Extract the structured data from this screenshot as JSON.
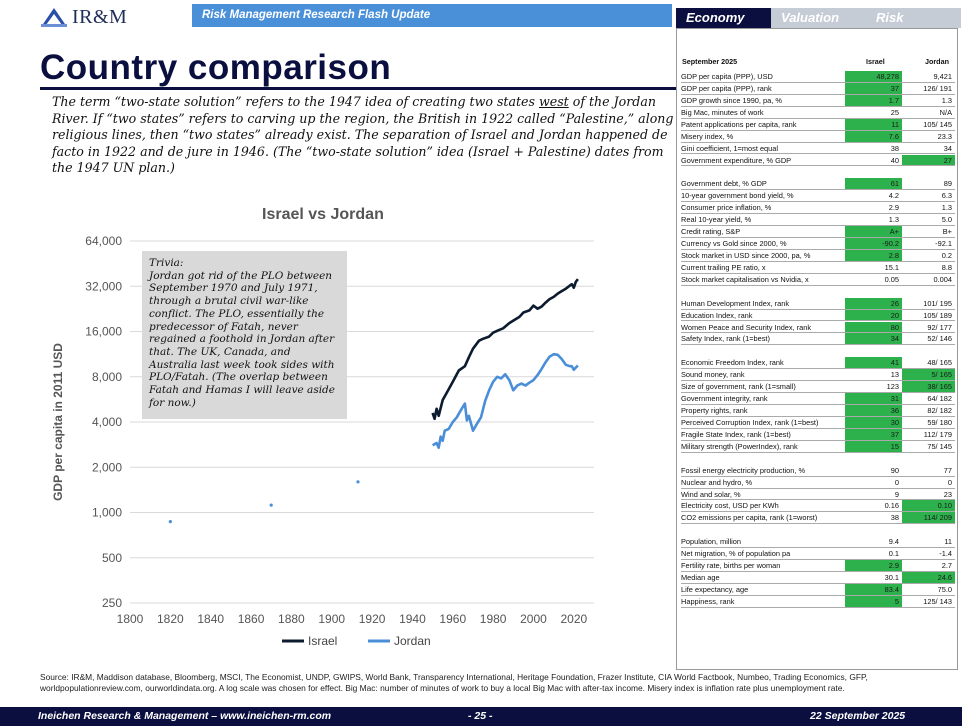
{
  "header": {
    "logo_text": "IR&M",
    "bar_title": "Risk Management Research Flash Update",
    "tabs": [
      {
        "label": "Economy",
        "active": true
      },
      {
        "label": "Valuation",
        "active": false
      },
      {
        "label": "Risk",
        "active": false
      }
    ]
  },
  "page_title": "Country comparison",
  "intro": {
    "part1": "The term “two-state solution” refers to the 1947 idea of creating two states ",
    "underlined": "west",
    "part2": " of the Jordan River. If “two states” refers to carving up the region, the British in 1922 called “Palestine,” along religious lines, then “two states” already exist. The separation of Israel and Jordan happened de facto in 1922 and de jure in 1946. (The “two-state solution” idea (Israel + Palestine) dates from the 1947 UN plan.)"
  },
  "trivia": {
    "heading": "Trivia:",
    "body": "Jordan got rid of the PLO between September 1970 and July 1971, through a brutal civil war-like conflict. The PLO, essentially the predecessor of Fatah, never regained a foothold in Jordan after that. The UK, Canada, and Australia last week took sides with PLO/Fatah. (The overlap between Fatah and Hamas I will leave aside for now.)"
  },
  "chart_data": {
    "type": "line",
    "title": "Israel vs Jordan",
    "xlabel": "",
    "ylabel": "GDP per capita in 2011 USD",
    "y_scale": "log",
    "ylim": [
      250,
      64000
    ],
    "xlim": [
      1800,
      2030
    ],
    "y_ticks": [
      "64,000",
      "32,000",
      "16,000",
      "8,000",
      "4,000",
      "2,000",
      "1,000",
      "500",
      "250"
    ],
    "y_tick_values": [
      64000,
      32000,
      16000,
      8000,
      4000,
      2000,
      1000,
      500,
      250
    ],
    "x_ticks": [
      "1800",
      "1820",
      "1840",
      "1860",
      "1880",
      "1900",
      "1920",
      "1940",
      "1960",
      "1980",
      "2000",
      "2020"
    ],
    "x_tick_values": [
      1800,
      1820,
      1840,
      1860,
      1880,
      1900,
      1920,
      1940,
      1960,
      1980,
      2000,
      2020
    ],
    "legend_position": "bottom",
    "grid": "horizontal",
    "series": [
      {
        "name": "Israel",
        "color": "#0d1b2e",
        "points": [
          [
            1950,
            4600
          ],
          [
            1951,
            4200
          ],
          [
            1952,
            4900
          ],
          [
            1953,
            4400
          ],
          [
            1955,
            5600
          ],
          [
            1958,
            6600
          ],
          [
            1960,
            7400
          ],
          [
            1963,
            8800
          ],
          [
            1966,
            9400
          ],
          [
            1968,
            10800
          ],
          [
            1970,
            12300
          ],
          [
            1973,
            13900
          ],
          [
            1975,
            14300
          ],
          [
            1978,
            14800
          ],
          [
            1980,
            15700
          ],
          [
            1983,
            16400
          ],
          [
            1985,
            16800
          ],
          [
            1988,
            18200
          ],
          [
            1990,
            18900
          ],
          [
            1993,
            20000
          ],
          [
            1995,
            21400
          ],
          [
            1998,
            22100
          ],
          [
            2000,
            23800
          ],
          [
            2002,
            22700
          ],
          [
            2004,
            23400
          ],
          [
            2006,
            24900
          ],
          [
            2008,
            26300
          ],
          [
            2010,
            27200
          ],
          [
            2012,
            28600
          ],
          [
            2014,
            29700
          ],
          [
            2016,
            30800
          ],
          [
            2018,
            32300
          ],
          [
            2019,
            33000
          ],
          [
            2020,
            31300
          ],
          [
            2021,
            34200
          ],
          [
            2022,
            35700
          ]
        ]
      },
      {
        "name": "Jordan",
        "color": "#4a8ed8",
        "points": [
          [
            1950,
            2800
          ],
          [
            1952,
            2900
          ],
          [
            1953,
            2700
          ],
          [
            1954,
            3200
          ],
          [
            1955,
            3000
          ],
          [
            1956,
            3500
          ],
          [
            1958,
            3600
          ],
          [
            1960,
            4000
          ],
          [
            1962,
            4300
          ],
          [
            1964,
            4800
          ],
          [
            1966,
            5300
          ],
          [
            1967,
            4100
          ],
          [
            1968,
            4400
          ],
          [
            1970,
            3500
          ],
          [
            1972,
            3900
          ],
          [
            1974,
            4300
          ],
          [
            1976,
            5500
          ],
          [
            1978,
            6500
          ],
          [
            1980,
            7400
          ],
          [
            1982,
            8000
          ],
          [
            1984,
            7800
          ],
          [
            1986,
            8300
          ],
          [
            1988,
            7600
          ],
          [
            1990,
            6500
          ],
          [
            1992,
            7000
          ],
          [
            1994,
            7200
          ],
          [
            1996,
            7000
          ],
          [
            1998,
            7300
          ],
          [
            2000,
            7600
          ],
          [
            2002,
            8200
          ],
          [
            2004,
            9000
          ],
          [
            2006,
            10000
          ],
          [
            2008,
            10900
          ],
          [
            2010,
            11300
          ],
          [
            2012,
            11200
          ],
          [
            2014,
            10500
          ],
          [
            2016,
            9600
          ],
          [
            2018,
            9400
          ],
          [
            2019,
            9400
          ],
          [
            2020,
            8900
          ],
          [
            2021,
            9200
          ],
          [
            2022,
            9500
          ]
        ]
      },
      {
        "name": "",
        "color": "#4a8ed8",
        "markers_only": true,
        "points": [
          [
            1820,
            870
          ],
          [
            1870,
            1120
          ],
          [
            1913,
            1600
          ]
        ]
      }
    ]
  },
  "panel": {
    "date": "September 2025",
    "col1": "Israel",
    "col2": "Jordan",
    "rows": [
      {
        "label": "GDP per capita (PPP), USD",
        "v1": "48,278",
        "v2": "9,421",
        "hl1": true,
        "hl2": false
      },
      {
        "label": "GDP per capita (PPP), rank",
        "v1": "37",
        "v2": "126/ 191",
        "hl1": true,
        "hl2": false
      },
      {
        "label": "GDP growth since 1990, pa, %",
        "v1": "1.7",
        "v2": "1.3",
        "hl1": true,
        "hl2": false
      },
      {
        "label": "Big Mac, minutes of work",
        "v1": "25",
        "v2": "N/A",
        "hl1": false,
        "hl2": false
      },
      {
        "label": "Patent applications per capita, rank",
        "v1": "11",
        "v2": "105/ 145",
        "hl1": true,
        "hl2": false
      },
      {
        "label": "Misery index, %",
        "v1": "7.6",
        "v2": "23.3",
        "hl1": true,
        "hl2": false
      },
      {
        "label": "Gini coefficient, 1=most equal",
        "v1": "38",
        "v2": "34",
        "hl1": false,
        "hl2": false
      },
      {
        "label": "Government expenditure, % GDP",
        "v1": "40",
        "v2": "27",
        "hl1": false,
        "hl2": true
      },
      {
        "label": "",
        "v1": "",
        "v2": "",
        "hl1": false,
        "hl2": false
      },
      {
        "label": "Government debt, % GDP",
        "v1": "61",
        "v2": "89",
        "hl1": true,
        "hl2": false
      },
      {
        "label": "10-year government bond yield, %",
        "v1": "4.2",
        "v2": "6.3",
        "hl1": false,
        "hl2": false
      },
      {
        "label": "Consumer price inflation, %",
        "v1": "2.9",
        "v2": "1.3",
        "hl1": false,
        "hl2": false
      },
      {
        "label": "Real 10-year yield, %",
        "v1": "1.3",
        "v2": "5.0",
        "hl1": false,
        "hl2": false
      },
      {
        "label": "Credit rating, S&P",
        "v1": "A+",
        "v2": "B+",
        "hl1": true,
        "hl2": false
      },
      {
        "label": "Currency vs Gold since 2000, %",
        "v1": "-90.2",
        "v2": "-92.1",
        "hl1": true,
        "hl2": false
      },
      {
        "label": "Stock market in USD since 2000, pa, %",
        "v1": "2.8",
        "v2": "0.2",
        "hl1": true,
        "hl2": false
      },
      {
        "label": "Current trailing PE ratio, x",
        "v1": "15.1",
        "v2": "8.8",
        "hl1": false,
        "hl2": false
      },
      {
        "label": "Stock market capitalisation vs Nvidia, x",
        "v1": "0.05",
        "v2": "0.004",
        "hl1": false,
        "hl2": false
      },
      {
        "label": "",
        "v1": "",
        "v2": "",
        "hl1": false,
        "hl2": false
      },
      {
        "label": "Human Development Index, rank",
        "v1": "26",
        "v2": "101/ 195",
        "hl1": true,
        "hl2": false
      },
      {
        "label": "Education Index, rank",
        "v1": "20",
        "v2": "105/ 189",
        "hl1": true,
        "hl2": false
      },
      {
        "label": "Women Peace and Security Index, rank",
        "v1": "80",
        "v2": "92/ 177",
        "hl1": true,
        "hl2": false
      },
      {
        "label": "Safety Index, rank (1=best)",
        "v1": "34",
        "v2": "52/ 146",
        "hl1": true,
        "hl2": false
      },
      {
        "label": "",
        "v1": "",
        "v2": "",
        "hl1": false,
        "hl2": false
      },
      {
        "label": "Economic Freedom Index, rank",
        "v1": "41",
        "v2": "48/ 165",
        "hl1": true,
        "hl2": false
      },
      {
        "label": "Sound money, rank",
        "v1": "13",
        "v2": "5/ 165",
        "hl1": false,
        "hl2": true
      },
      {
        "label": "Size of government, rank (1=small)",
        "v1": "123",
        "v2": "38/ 165",
        "hl1": false,
        "hl2": true
      },
      {
        "label": "Government integrity, rank",
        "v1": "31",
        "v2": "64/ 182",
        "hl1": true,
        "hl2": false
      },
      {
        "label": "Property rights, rank",
        "v1": "36",
        "v2": "82/ 182",
        "hl1": true,
        "hl2": false
      },
      {
        "label": "Perceived Corruption Index, rank (1=best)",
        "v1": "30",
        "v2": "59/ 180",
        "hl1": true,
        "hl2": false
      },
      {
        "label": "Fragile State Index, rank (1=best)",
        "v1": "37",
        "v2": "112/ 179",
        "hl1": true,
        "hl2": false
      },
      {
        "label": "Military strength (PowerIndex), rank",
        "v1": "15",
        "v2": "75/ 145",
        "hl1": true,
        "hl2": false
      },
      {
        "label": "",
        "v1": "",
        "v2": "",
        "hl1": false,
        "hl2": false
      },
      {
        "label": "Fossil energy electricity production, %",
        "v1": "90",
        "v2": "77",
        "hl1": false,
        "hl2": false
      },
      {
        "label": "Nuclear and hydro, %",
        "v1": "0",
        "v2": "0",
        "hl1": false,
        "hl2": false
      },
      {
        "label": "Wind and solar, %",
        "v1": "9",
        "v2": "23",
        "hl1": false,
        "hl2": false
      },
      {
        "label": "Electricity cost, USD per KWh",
        "v1": "0.16",
        "v2": "0.10",
        "hl1": false,
        "hl2": true
      },
      {
        "label": "CO2 emissions per capita, rank (1=worst)",
        "v1": "38",
        "v2": "114/ 209",
        "hl1": false,
        "hl2": true
      },
      {
        "label": "",
        "v1": "",
        "v2": "",
        "hl1": false,
        "hl2": false
      },
      {
        "label": "Population, million",
        "v1": "9.4",
        "v2": "11",
        "hl1": false,
        "hl2": false
      },
      {
        "label": "Net migration, % of population pa",
        "v1": "0.1",
        "v2": "-1.4",
        "hl1": false,
        "hl2": false
      },
      {
        "label": "Fertility rate, births per woman",
        "v1": "2.9",
        "v2": "2.7",
        "hl1": true,
        "hl2": false
      },
      {
        "label": "Median age",
        "v1": "30.1",
        "v2": "24.6",
        "hl1": false,
        "hl2": true
      },
      {
        "label": "Life expectancy, age",
        "v1": "83.4",
        "v2": "75.0",
        "hl1": true,
        "hl2": false
      },
      {
        "label": "Happiness, rank",
        "v1": "5",
        "v2": "125/ 143",
        "hl1": true,
        "hl2": false
      }
    ]
  },
  "source_text": "Source: IR&M, Maddison database, Bloomberg, MSCI, The Economist, UNDP, GWIPS, World Bank, Transparency International, Heritage Foundation, Frazer Institute, CIA World Factbook, Numbeo, Trading Economics, GFP, worldpopulationreview.com, ourworldindata.org. A log scale was chosen for effect. Big Mac: number of minutes of work to buy a local Big Mac with after-tax income. Misery index is inflation rate plus unemployment rate.",
  "footer": {
    "left": "Ineichen Research & Management – www.ineichen-rm.com",
    "page": "- 25 -",
    "date": "22 September 2025"
  }
}
